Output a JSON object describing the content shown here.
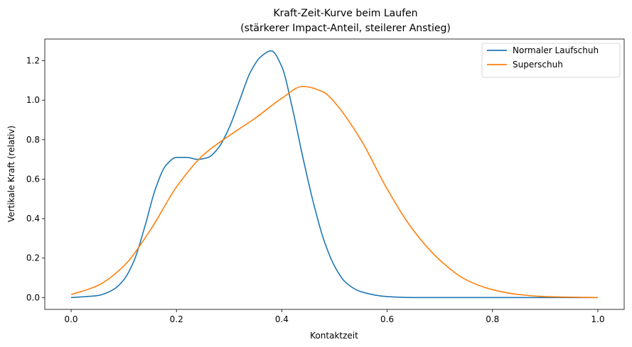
{
  "chart_data": {
    "type": "line",
    "title": "Kraft-Zeit-Kurve beim Laufen",
    "subtitle": "(stärkerer Impact-Anteil, steilerer Anstieg)",
    "xlabel": "Kontaktzeit",
    "ylabel": "Vertikale Kraft (relativ)",
    "xlim": [
      -0.05,
      1.05
    ],
    "ylim": [
      -0.06,
      1.31
    ],
    "xticks": [
      0.0,
      0.2,
      0.4,
      0.6,
      0.8,
      1.0
    ],
    "xtick_labels": [
      "0.0",
      "0.2",
      "0.4",
      "0.6",
      "0.8",
      "1.0"
    ],
    "yticks": [
      0.0,
      0.2,
      0.4,
      0.6,
      0.8,
      1.0,
      1.2
    ],
    "ytick_labels": [
      "0.0",
      "0.2",
      "0.4",
      "0.6",
      "0.8",
      "1.0",
      "1.2"
    ],
    "grid": false,
    "legend_position": "top-right",
    "series": [
      {
        "name": "Normaler Laufschuh",
        "color": "#1f77b4",
        "x": [
          0.0,
          0.05,
          0.08,
          0.1,
          0.12,
          0.14,
          0.16,
          0.18,
          0.2,
          0.22,
          0.24,
          0.26,
          0.28,
          0.3,
          0.32,
          0.34,
          0.36,
          0.38,
          0.4,
          0.42,
          0.44,
          0.46,
          0.48,
          0.5,
          0.52,
          0.55,
          0.6,
          0.65,
          0.7,
          0.8,
          1.0
        ],
        "y": [
          0.0,
          0.01,
          0.04,
          0.09,
          0.19,
          0.36,
          0.55,
          0.67,
          0.71,
          0.71,
          0.7,
          0.71,
          0.76,
          0.86,
          1.0,
          1.14,
          1.22,
          1.25,
          1.17,
          0.96,
          0.71,
          0.48,
          0.29,
          0.16,
          0.08,
          0.03,
          0.005,
          0.0,
          0.0,
          0.0,
          0.0
        ]
      },
      {
        "name": "Superschuh",
        "color": "#ff7f0e",
        "x": [
          0.0,
          0.05,
          0.1,
          0.15,
          0.2,
          0.25,
          0.3,
          0.35,
          0.4,
          0.44,
          0.48,
          0.5,
          0.55,
          0.6,
          0.65,
          0.7,
          0.75,
          0.8,
          0.85,
          0.9,
          0.95,
          1.0
        ],
        "y": [
          0.015,
          0.06,
          0.16,
          0.34,
          0.56,
          0.72,
          0.82,
          0.91,
          1.01,
          1.07,
          1.04,
          0.99,
          0.8,
          0.55,
          0.34,
          0.19,
          0.09,
          0.04,
          0.015,
          0.005,
          0.002,
          0.0
        ]
      }
    ]
  }
}
